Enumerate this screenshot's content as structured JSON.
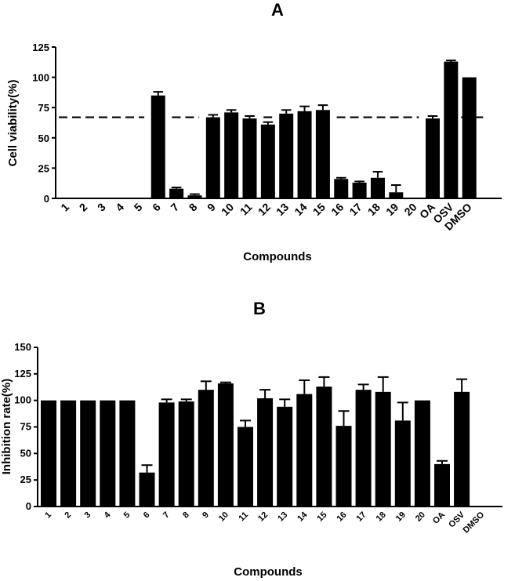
{
  "chart_data": [
    {
      "id": "A",
      "type": "bar",
      "title": "A",
      "xlabel": "Compounds",
      "ylabel": "Cell viability(%)",
      "ylim": [
        0,
        125
      ],
      "yticks": [
        0,
        25,
        50,
        75,
        100,
        125
      ],
      "categories": [
        "1",
        "2",
        "3",
        "4",
        "5",
        "6",
        "7",
        "8",
        "9",
        "10",
        "11",
        "12",
        "13",
        "14",
        "15",
        "16",
        "17",
        "18",
        "19",
        "20",
        "OA",
        "OSV",
        "DMSO"
      ],
      "values": [
        0,
        0,
        0,
        0,
        0,
        85,
        8,
        2.5,
        67,
        71,
        66,
        61,
        70,
        72,
        73,
        16,
        13,
        17,
        5,
        0,
        66,
        113,
        100
      ],
      "errors": [
        0,
        0,
        0,
        0,
        0,
        3,
        1,
        1,
        2,
        2,
        2,
        2,
        3,
        4,
        4,
        1,
        1,
        5,
        6,
        0,
        2,
        1,
        0
      ],
      "reference_line": {
        "value": 67,
        "style": "dashed"
      },
      "grid": false
    },
    {
      "id": "B",
      "type": "bar",
      "title": "B",
      "xlabel": "Compounds",
      "ylabel": "Inhibition rate(%)",
      "ylim": [
        0,
        150
      ],
      "yticks": [
        0,
        25,
        50,
        75,
        100,
        125,
        150
      ],
      "categories": [
        "1",
        "2",
        "3",
        "4",
        "5",
        "6",
        "7",
        "8",
        "9",
        "10",
        "11",
        "12",
        "13",
        "14",
        "15",
        "16",
        "17",
        "18",
        "19",
        "20",
        "OA",
        "OSV",
        "DMSO"
      ],
      "values": [
        100,
        100,
        100,
        100,
        100,
        32,
        98,
        99,
        110,
        116,
        75,
        102,
        94,
        106,
        113,
        76,
        110,
        108,
        81,
        100,
        40,
        108,
        0
      ],
      "errors": [
        0,
        0,
        0,
        0,
        0,
        7,
        3,
        2,
        8,
        1,
        6,
        8,
        7,
        13,
        9,
        14,
        5,
        14,
        17,
        0,
        3,
        12,
        0
      ],
      "grid": false
    }
  ]
}
